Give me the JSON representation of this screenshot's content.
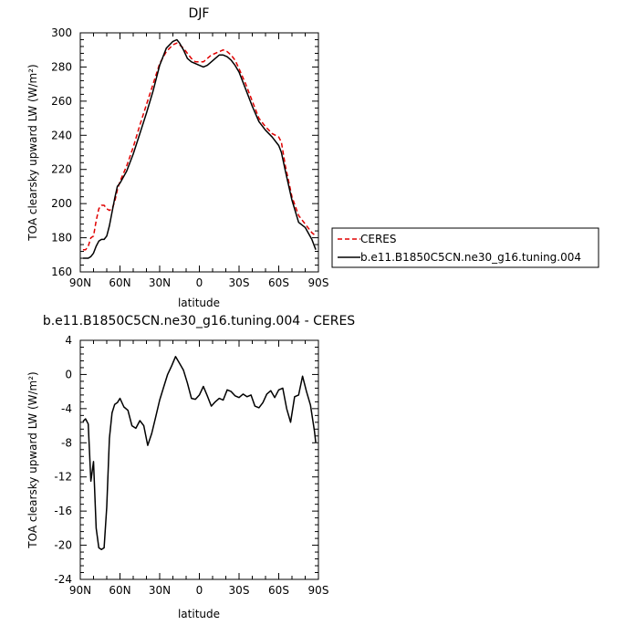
{
  "chart_data": [
    {
      "type": "line",
      "title": "DJF",
      "xlabel": "latitude",
      "ylabel": "TOA clearsky upward LW (W/m²)",
      "xlim": [
        90,
        -90
      ],
      "ylim": [
        160,
        300
      ],
      "xticks": [
        90,
        60,
        30,
        0,
        -30,
        -60,
        -90
      ],
      "xticklabels": [
        "90N",
        "60N",
        "30N",
        "0",
        "30S",
        "60S",
        "90S"
      ],
      "yticks": [
        160,
        180,
        200,
        220,
        240,
        260,
        280,
        300
      ],
      "legend_position": "right",
      "series": [
        {
          "name": "CERES",
          "color": "#e00000",
          "dash": "dashed",
          "x": [
            88,
            86,
            84,
            82,
            80,
            78,
            76,
            74,
            72,
            70,
            68,
            66,
            64,
            62,
            60,
            55,
            50,
            45,
            40,
            35,
            30,
            25,
            20,
            17,
            15,
            12,
            9,
            6,
            3,
            0,
            -3,
            -6,
            -9,
            -12,
            -15,
            -18,
            -21,
            -24,
            -27,
            -30,
            -35,
            -40,
            -45,
            -50,
            -55,
            -60,
            -62,
            -65,
            -70,
            -75,
            -80,
            -85,
            -88
          ],
          "y": [
            173,
            173,
            175,
            180,
            181,
            190,
            197,
            199,
            199,
            197,
            196,
            197,
            201,
            208,
            213,
            222,
            233,
            246,
            258,
            270,
            282,
            289,
            293,
            294,
            293,
            291,
            288,
            285,
            283,
            283,
            283,
            285,
            287,
            288,
            289,
            290,
            289,
            287,
            284,
            279,
            270,
            260,
            250,
            245,
            241,
            239,
            236,
            222,
            204,
            193,
            188,
            183,
            181
          ]
        },
        {
          "name": "b.e11.B1850C5CN.ne30_g16.tuning.004",
          "color": "#000000",
          "dash": "solid",
          "x": [
            88,
            86,
            84,
            82,
            80,
            78,
            76,
            74,
            72,
            70,
            68,
            66,
            64,
            62,
            60,
            55,
            50,
            45,
            40,
            35,
            30,
            25,
            20,
            17,
            15,
            12,
            9,
            6,
            3,
            0,
            -3,
            -6,
            -9,
            -12,
            -15,
            -18,
            -21,
            -24,
            -27,
            -30,
            -35,
            -40,
            -45,
            -50,
            -55,
            -60,
            -62,
            -65,
            -70,
            -75,
            -80,
            -85,
            -88
          ],
          "y": [
            168,
            168,
            168,
            169,
            171,
            175,
            178,
            179,
            179,
            181,
            187,
            195,
            203,
            210,
            212,
            219,
            229,
            241,
            253,
            266,
            281,
            291,
            295,
            296,
            294,
            290,
            285,
            283,
            282,
            281,
            280,
            281,
            283,
            285,
            287,
            287,
            286,
            284,
            281,
            277,
            267,
            257,
            248,
            243,
            239,
            234,
            230,
            219,
            202,
            189,
            186,
            179,
            173
          ]
        }
      ]
    },
    {
      "type": "line",
      "title": "b.e11.B1850C5CN.ne30_g16.tuning.004 - CERES",
      "xlabel": "latitude",
      "ylabel": "TOA clearsky upward LW (W/m²)",
      "xlim": [
        90,
        -90
      ],
      "ylim": [
        -24,
        4
      ],
      "xticks": [
        90,
        60,
        30,
        0,
        -30,
        -60,
        -90
      ],
      "xticklabels": [
        "90N",
        "60N",
        "30N",
        "0",
        "30S",
        "60S",
        "90S"
      ],
      "yticks": [
        -24,
        -20,
        -16,
        -12,
        -8,
        -4,
        0,
        4
      ],
      "series": [
        {
          "color": "#000000",
          "dash": "solid",
          "x": [
            88,
            86,
            84,
            82,
            80,
            78,
            76,
            74,
            72,
            70,
            68,
            66,
            64,
            62,
            60,
            57,
            54,
            51,
            48,
            45,
            42,
            39,
            36,
            33,
            30,
            27,
            24,
            21,
            18,
            15,
            12,
            9,
            6,
            3,
            0,
            -3,
            -6,
            -9,
            -12,
            -15,
            -18,
            -21,
            -24,
            -27,
            -30,
            -33,
            -36,
            -39,
            -42,
            -45,
            -48,
            -51,
            -54,
            -57,
            -60,
            -63,
            -66,
            -69,
            -72,
            -75,
            -78,
            -81,
            -84,
            -87,
            -88
          ],
          "y": [
            -5.5,
            -5.2,
            -5.8,
            -12.5,
            -10.2,
            -18.0,
            -20.3,
            -20.5,
            -20.3,
            -15.5,
            -7.5,
            -4.5,
            -3.5,
            -3.3,
            -2.8,
            -3.8,
            -4.2,
            -6.0,
            -6.3,
            -5.4,
            -6.0,
            -8.3,
            -6.9,
            -5.0,
            -3.0,
            -1.5,
            0.0,
            1.0,
            2.1,
            1.3,
            0.5,
            -1.0,
            -2.8,
            -2.9,
            -2.4,
            -1.4,
            -2.5,
            -3.7,
            -3.2,
            -2.8,
            -3.0,
            -1.8,
            -2.0,
            -2.5,
            -2.7,
            -2.3,
            -2.6,
            -2.4,
            -3.7,
            -3.9,
            -3.3,
            -2.3,
            -1.9,
            -2.7,
            -1.8,
            -1.6,
            -4.0,
            -5.6,
            -2.6,
            -2.4,
            -0.2,
            -2.0,
            -3.6,
            -6.6,
            -8.0
          ]
        }
      ]
    }
  ]
}
